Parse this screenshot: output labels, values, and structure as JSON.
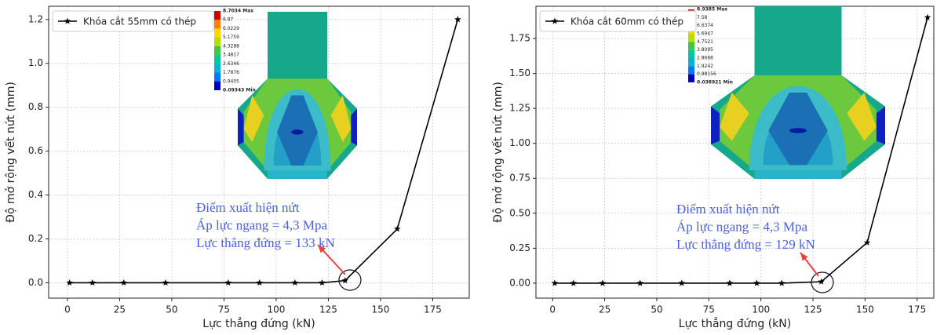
{
  "chart_data": [
    {
      "type": "line",
      "x_label": "Lực thẳng đứng (kN)",
      "y_label": "Độ mở rộng vết nứt (mm)",
      "x": [
        1,
        12,
        27,
        47,
        77,
        92,
        109,
        122,
        133,
        158,
        187
      ],
      "series": [
        {
          "name": "Khóa cắt 55mm có thép",
          "color": "#000000",
          "values": [
            0,
            0,
            0,
            0,
            0,
            0,
            0,
            0,
            0.01,
            0.245,
            1.2
          ]
        }
      ],
      "xlim": [
        -9,
        192.5
      ],
      "ylim": [
        -0.07,
        1.26
      ],
      "xticks": [
        0,
        25,
        50,
        75,
        100,
        125,
        150,
        175
      ],
      "yticks": [
        {
          "value": 0,
          "label": "0.0"
        },
        0.2,
        0.4,
        0.6,
        0.8,
        {
          "value": 1,
          "label": "1.0"
        },
        1.2
      ],
      "grid": true,
      "legend": "upper left",
      "annotations": [
        "Điểm xuất hiện nứt",
        "Áp lực ngang = 4,3 Mpa",
        "Lực thẳng đứng = 133 kN"
      ],
      "inset_legend": [
        "8.7034 Max",
        "6.87",
        "6.0229",
        "5.1759",
        "4.3288",
        "3.4817",
        "2.6346",
        "1.7876",
        "0.9405",
        "0.09343 Min"
      ]
    },
    {
      "type": "line",
      "x_label": "Lực thẳng đứng (kN)",
      "y_label": "Độ mở rộng vết nứt (mm)",
      "x": [
        1,
        10,
        24,
        42,
        62,
        85,
        98,
        110,
        129,
        151,
        180
      ],
      "series": [
        {
          "name": "Khóa cắt 60mm có thép",
          "color": "#000000",
          "values": [
            0,
            0,
            0,
            0,
            0,
            0,
            0,
            0,
            0.01,
            0.29,
            1.9
          ]
        }
      ],
      "xlim": [
        -8,
        183
      ],
      "ylim": [
        -0.107,
        1.98
      ],
      "xticks": [
        0,
        25,
        50,
        75,
        100,
        125,
        150,
        175
      ],
      "yticks": [
        {
          "value": 0,
          "label": "0.00"
        },
        0.25,
        {
          "value": 0.5,
          "label": "0.50"
        },
        0.75,
        {
          "value": 1,
          "label": "1.00"
        },
        1.25,
        {
          "value": 1.5,
          "label": "1.50"
        },
        1.75
      ],
      "grid": true,
      "legend": "upper left",
      "annotations": [
        "Điểm xuất hiện nứt",
        "Áp lực ngang = 4,3 Mpa",
        "Lực thẳng đứng = 129 kN"
      ],
      "inset_legend": [
        "8.9385 Max",
        "7.58",
        "6.6374",
        "5.6947",
        "4.7521",
        "3.8095",
        "2.8668",
        "1.9242",
        "0.98156",
        "0.038921 Min"
      ]
    }
  ]
}
